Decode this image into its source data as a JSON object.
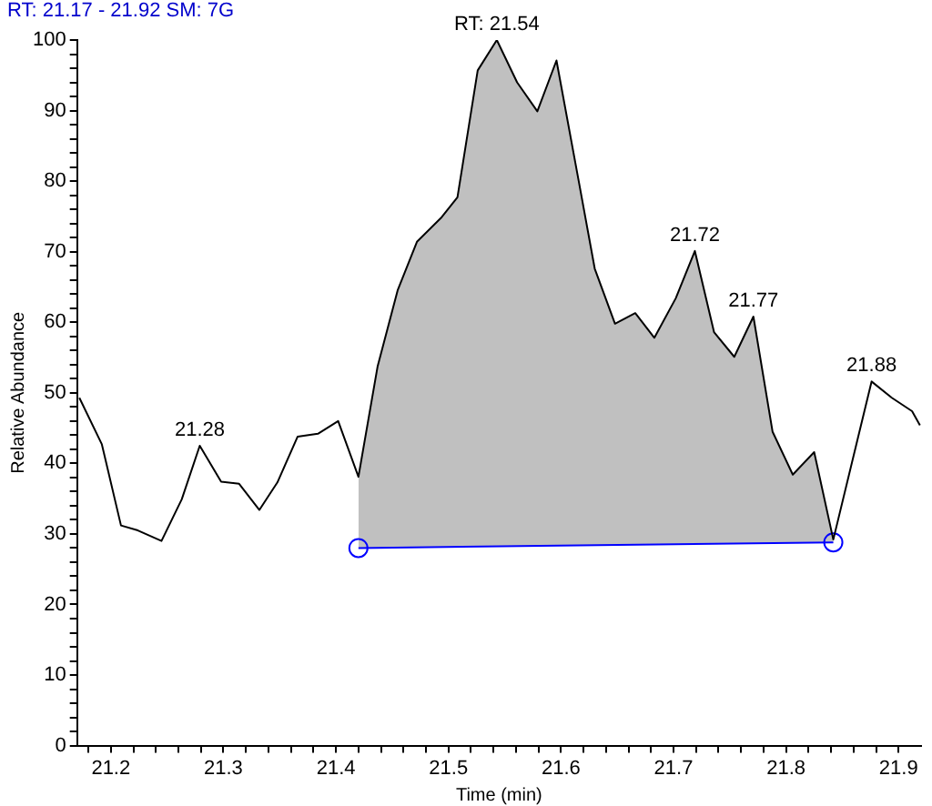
{
  "chart_data": {
    "type": "line",
    "title": "RT: 21.17 - 21.92  SM: 7G",
    "xlabel": "Time (min)",
    "ylabel": "Relative Abundance",
    "xlim": [
      21.17,
      21.92
    ],
    "ylim": [
      0,
      100
    ],
    "xticks": [
      {
        "value": 21.18,
        "label": null
      },
      21.2,
      {
        "value": 21.22,
        "label": null
      },
      {
        "value": 21.24,
        "label": null
      },
      {
        "value": 21.26,
        "label": null
      },
      {
        "value": 21.28,
        "label": null
      },
      21.3,
      {
        "value": 21.32,
        "label": null
      },
      {
        "value": 21.34,
        "label": null
      },
      {
        "value": 21.36,
        "label": null
      },
      {
        "value": 21.38,
        "label": null
      },
      21.4,
      {
        "value": 21.42,
        "label": null
      },
      {
        "value": 21.44,
        "label": null
      },
      {
        "value": 21.46,
        "label": null
      },
      {
        "value": 21.48,
        "label": null
      },
      21.5,
      {
        "value": 21.52,
        "label": null
      },
      {
        "value": 21.54,
        "label": null
      },
      {
        "value": 21.56,
        "label": null
      },
      {
        "value": 21.58,
        "label": null
      },
      21.6,
      {
        "value": 21.62,
        "label": null
      },
      {
        "value": 21.64,
        "label": null
      },
      {
        "value": 21.66,
        "label": null
      },
      {
        "value": 21.68,
        "label": null
      },
      21.7,
      {
        "value": 21.72,
        "label": null
      },
      {
        "value": 21.74,
        "label": null
      },
      {
        "value": 21.76,
        "label": null
      },
      {
        "value": 21.78,
        "label": null
      },
      21.8,
      {
        "value": 21.82,
        "label": null
      },
      {
        "value": 21.84,
        "label": null
      },
      {
        "value": 21.86,
        "label": null
      },
      {
        "value": 21.88,
        "label": null
      },
      21.9
    ],
    "yticks": [
      0,
      {
        "value": 2,
        "label": null
      },
      {
        "value": 4,
        "label": null
      },
      {
        "value": 6,
        "label": null
      },
      {
        "value": 8,
        "label": null
      },
      10,
      {
        "value": 12,
        "label": null
      },
      {
        "value": 14,
        "label": null
      },
      {
        "value": 16,
        "label": null
      },
      {
        "value": 18,
        "label": null
      },
      20,
      {
        "value": 22,
        "label": null
      },
      {
        "value": 24,
        "label": null
      },
      {
        "value": 26,
        "label": null
      },
      {
        "value": 28,
        "label": null
      },
      30,
      {
        "value": 32,
        "label": null
      },
      {
        "value": 34,
        "label": null
      },
      {
        "value": 36,
        "label": null
      },
      {
        "value": 38,
        "label": null
      },
      40,
      {
        "value": 42,
        "label": null
      },
      {
        "value": 44,
        "label": null
      },
      {
        "value": 46,
        "label": null
      },
      {
        "value": 48,
        "label": null
      },
      50,
      {
        "value": 52,
        "label": null
      },
      {
        "value": 54,
        "label": null
      },
      {
        "value": 56,
        "label": null
      },
      {
        "value": 58,
        "label": null
      },
      60,
      {
        "value": 62,
        "label": null
      },
      {
        "value": 64,
        "label": null
      },
      {
        "value": 66,
        "label": null
      },
      {
        "value": 68,
        "label": null
      },
      70,
      {
        "value": 72,
        "label": null
      },
      {
        "value": 74,
        "label": null
      },
      {
        "value": 76,
        "label": null
      },
      {
        "value": 78,
        "label": null
      },
      80,
      {
        "value": 82,
        "label": null
      },
      {
        "value": 84,
        "label": null
      },
      {
        "value": 86,
        "label": null
      },
      {
        "value": 88,
        "label": null
      },
      90,
      {
        "value": 92,
        "label": null
      },
      {
        "value": 94,
        "label": null
      },
      {
        "value": 96,
        "label": null
      },
      {
        "value": 98,
        "label": null
      },
      100
    ],
    "grid": false,
    "legend": false,
    "marker": "none",
    "line_style": "solid",
    "series": [
      {
        "type": "line",
        "color": "#000000",
        "x": [
          21.172,
          21.192,
          21.209,
          21.224,
          21.245,
          21.263,
          21.279,
          21.298,
          21.314,
          21.332,
          21.348,
          21.366,
          21.384,
          21.402,
          21.42,
          21.437,
          21.455,
          21.472,
          21.494,
          21.508,
          21.526,
          21.543,
          21.561,
          21.579,
          21.596,
          21.616,
          21.63,
          21.648,
          21.666,
          21.683,
          21.702,
          21.719,
          21.736,
          21.754,
          21.771,
          21.788,
          21.806,
          21.825,
          21.842,
          21.876,
          21.894,
          21.912,
          21.919
        ],
        "values": [
          49.3,
          42.7,
          31.2,
          30.5,
          29.0,
          34.9,
          42.5,
          37.4,
          37.1,
          33.4,
          37.3,
          43.8,
          44.2,
          46.0,
          38.1,
          53.7,
          64.6,
          71.4,
          74.9,
          77.7,
          95.7,
          100,
          94.0,
          89.9,
          97.1,
          79.8,
          67.6,
          59.8,
          61.3,
          57.8,
          63.4,
          70.1,
          58.6,
          55.1,
          60.8,
          44.5,
          38.4,
          41.6,
          29.2,
          51.6,
          49.3,
          47.4,
          45.4
        ]
      },
      {
        "type": "area",
        "color": "#c0c0c0",
        "x": [
          21.42,
          21.437,
          21.455,
          21.472,
          21.494,
          21.508,
          21.526,
          21.543,
          21.561,
          21.579,
          21.596,
          21.616,
          21.63,
          21.648,
          21.666,
          21.683,
          21.702,
          21.719,
          21.736,
          21.754,
          21.771,
          21.788,
          21.806,
          21.825,
          21.842
        ],
        "values": [
          38.1,
          53.7,
          64.6,
          71.4,
          74.9,
          77.7,
          95.7,
          100,
          94.0,
          89.9,
          97.1,
          79.8,
          67.6,
          59.8,
          61.3,
          57.8,
          63.4,
          70.1,
          58.6,
          55.1,
          60.8,
          44.5,
          38.4,
          41.6,
          29.2
        ]
      },
      {
        "type": "line",
        "color": "#0000ff",
        "marker": "circle",
        "x": [
          21.42,
          21.842
        ],
        "values": [
          28.0,
          28.8
        ]
      }
    ],
    "annotations": [
      {
        "text": "RT: 21.54",
        "x": 21.543,
        "y": 100
      },
      {
        "text": "21.28",
        "x": 21.279,
        "y": 42.5
      },
      {
        "text": "21.72",
        "x": 21.719,
        "y": 70.1
      },
      {
        "text": "21.77",
        "x": 21.771,
        "y": 60.8
      },
      {
        "text": "21.88",
        "x": 21.876,
        "y": 51.6
      }
    ]
  }
}
